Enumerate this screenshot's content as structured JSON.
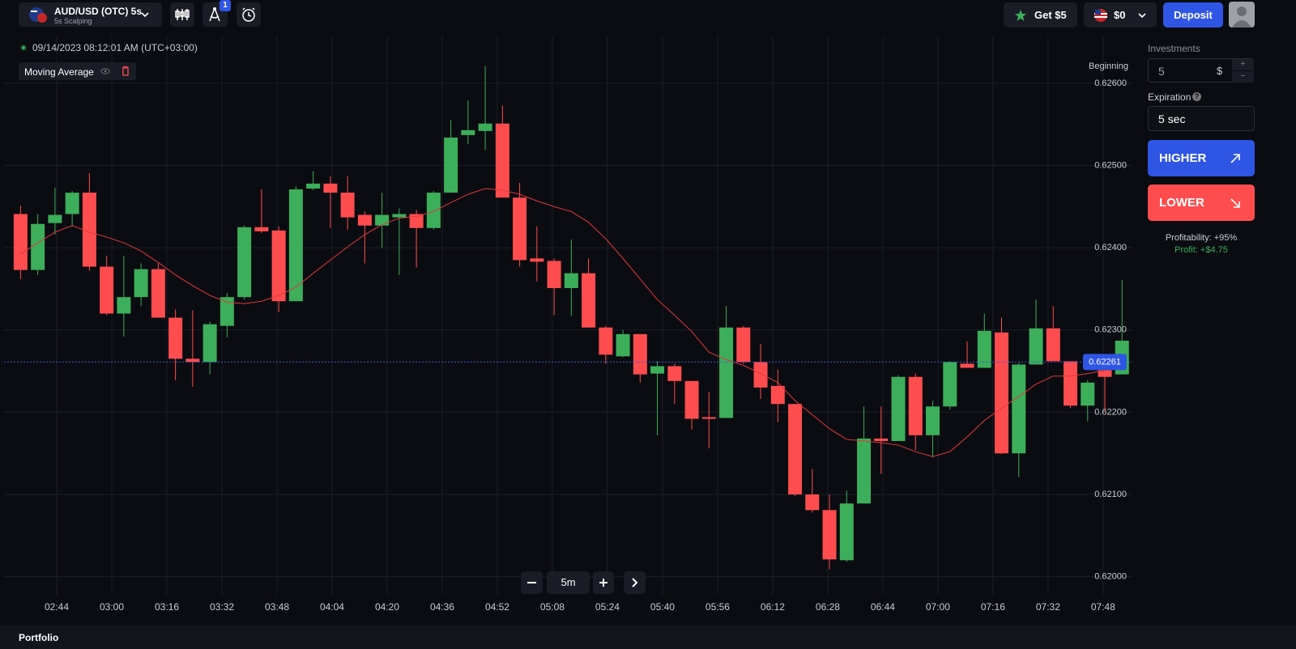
{
  "header": {
    "pair": "AUD/USD (OTC) 5s",
    "mode": "5s Scalping",
    "badge": "1",
    "bonus": "Get $5",
    "balance": "$0",
    "deposit": "Deposit"
  },
  "chart_data": {
    "type": "candlestick",
    "date": "09/14/2023",
    "time": "08:12:01 AM",
    "timezone": "(UTC+03:00)",
    "note": "Beginning",
    "timeframe": "5m",
    "current_price": 0.62261,
    "up_color": "#3dae5a",
    "down_color": "#ff4d4f",
    "grid": true,
    "xlim": [
      148.7,
      476.5
    ],
    "ylim": [
      0.61978,
      0.62657
    ],
    "xticks": [
      {
        "value": 164,
        "label": "02:44"
      },
      {
        "value": 180,
        "label": "03:00"
      },
      {
        "value": 196,
        "label": "03:16"
      },
      {
        "value": 212,
        "label": "03:32"
      },
      {
        "value": 228,
        "label": "03:48"
      },
      {
        "value": 244,
        "label": "04:04"
      },
      {
        "value": 260,
        "label": "04:20"
      },
      {
        "value": 276,
        "label": "04:36"
      },
      {
        "value": 292,
        "label": "04:52"
      },
      {
        "value": 308,
        "label": "05:08"
      },
      {
        "value": 324,
        "label": "05:24"
      },
      {
        "value": 340,
        "label": "05:40"
      },
      {
        "value": 356,
        "label": "05:56"
      },
      {
        "value": 372,
        "label": "06:12"
      },
      {
        "value": 388,
        "label": "06:28"
      },
      {
        "value": 404,
        "label": "06:44"
      },
      {
        "value": 420,
        "label": "07:00"
      },
      {
        "value": 436,
        "label": "07:16"
      },
      {
        "value": 452,
        "label": "07:32"
      },
      {
        "value": 468,
        "label": "07:48"
      }
    ],
    "yticks": [
      {
        "value": 0.626,
        "label": "0.62600"
      },
      {
        "value": 0.625,
        "label": "0.62500"
      },
      {
        "value": 0.624,
        "label": "0.62400"
      },
      {
        "value": 0.623,
        "label": "0.62300"
      },
      {
        "value": 0.622,
        "label": "0.62200"
      },
      {
        "value": 0.621,
        "label": "0.62100"
      },
      {
        "value": 0.62,
        "label": "0.62000"
      }
    ],
    "x": [
      151,
      156,
      161,
      166,
      171,
      176,
      181,
      186,
      191,
      196,
      201,
      206,
      211,
      216,
      221,
      226,
      231,
      236,
      241,
      246,
      251,
      256,
      261,
      266,
      271,
      276,
      281,
      286,
      291,
      296,
      301,
      306,
      311,
      316,
      321,
      326,
      331,
      336,
      341,
      346,
      351,
      356,
      361,
      366,
      371,
      376,
      381,
      386,
      391,
      396,
      401,
      406,
      411,
      416,
      421,
      426,
      431,
      436,
      441,
      446,
      451,
      456,
      461,
      466,
      471
    ],
    "open": [
      0.62441,
      0.62373,
      0.6243,
      0.62441,
      0.62467,
      0.62377,
      0.6232,
      0.6234,
      0.62374,
      0.62315,
      0.62265,
      0.62261,
      0.62305,
      0.6234,
      0.62425,
      0.62421,
      0.62335,
      0.62472,
      0.62478,
      0.62467,
      0.6244,
      0.62427,
      0.62437,
      0.62441,
      0.62424,
      0.62467,
      0.62537,
      0.62542,
      0.62551,
      0.62461,
      0.62387,
      0.62384,
      0.62351,
      0.62369,
      0.62303,
      0.62268,
      0.62295,
      0.62247,
      0.62256,
      0.62238,
      0.62194,
      0.62193,
      0.62303,
      0.62261,
      0.62232,
      0.6221,
      0.621,
      0.62081,
      0.6202,
      0.62089,
      0.62168,
      0.62165,
      0.62243,
      0.62172,
      0.62207,
      0.62259,
      0.62254,
      0.62297,
      0.6215,
      0.62258,
      0.62302,
      0.62262,
      0.62208,
      0.62251,
      0.62246
    ],
    "high": [
      0.62451,
      0.62441,
      0.62473,
      0.62469,
      0.62491,
      0.6239,
      0.6239,
      0.62381,
      0.62381,
      0.62325,
      0.62324,
      0.6231,
      0.62345,
      0.62427,
      0.62471,
      0.62426,
      0.62475,
      0.62493,
      0.62487,
      0.62487,
      0.62444,
      0.62467,
      0.62448,
      0.62446,
      0.62469,
      0.62555,
      0.62579,
      0.62621,
      0.62573,
      0.62479,
      0.62426,
      0.62387,
      0.6241,
      0.62387,
      0.62305,
      0.623,
      0.62295,
      0.62262,
      0.62259,
      0.62238,
      0.62225,
      0.62329,
      0.62305,
      0.62283,
      0.62252,
      0.6221,
      0.62131,
      0.621,
      0.62105,
      0.62207,
      0.62207,
      0.62245,
      0.62247,
      0.62214,
      0.62262,
      0.62286,
      0.6232,
      0.62315,
      0.6226,
      0.62337,
      0.62329,
      0.62262,
      0.62239,
      0.62259,
      0.62361
    ],
    "low": [
      0.62362,
      0.62367,
      0.62416,
      0.62426,
      0.62372,
      0.62318,
      0.62292,
      0.62329,
      0.62315,
      0.62239,
      0.62231,
      0.62246,
      0.62291,
      0.62337,
      0.62418,
      0.62322,
      0.62335,
      0.6247,
      0.62424,
      0.62422,
      0.62381,
      0.624,
      0.62367,
      0.62376,
      0.62422,
      0.62467,
      0.62526,
      0.62519,
      0.62461,
      0.62377,
      0.62359,
      0.62318,
      0.62317,
      0.62303,
      0.62259,
      0.62267,
      0.62236,
      0.62172,
      0.6221,
      0.62179,
      0.62156,
      0.62193,
      0.62259,
      0.62216,
      0.62188,
      0.62098,
      0.62078,
      0.62009,
      0.62018,
      0.62089,
      0.62125,
      0.62165,
      0.62154,
      0.62145,
      0.62203,
      0.62254,
      0.62254,
      0.62149,
      0.62121,
      0.62258,
      0.62262,
      0.62205,
      0.62189,
      0.62202,
      0.62246
    ],
    "close": [
      0.62373,
      0.62429,
      0.6244,
      0.62467,
      0.62377,
      0.6232,
      0.6234,
      0.62374,
      0.62315,
      0.62265,
      0.62261,
      0.62307,
      0.6234,
      0.62425,
      0.6242,
      0.62335,
      0.62471,
      0.62478,
      0.62467,
      0.62437,
      0.62427,
      0.6244,
      0.62441,
      0.62424,
      0.62467,
      0.62534,
      0.62543,
      0.62551,
      0.62461,
      0.62385,
      0.62383,
      0.62351,
      0.62369,
      0.62303,
      0.6227,
      0.62295,
      0.62246,
      0.62256,
      0.62238,
      0.62192,
      0.62192,
      0.62303,
      0.62261,
      0.6223,
      0.6221,
      0.621,
      0.62081,
      0.62021,
      0.62089,
      0.62168,
      0.62165,
      0.62243,
      0.62172,
      0.62207,
      0.62261,
      0.62254,
      0.62299,
      0.6215,
      0.62258,
      0.62302,
      0.62262,
      0.62208,
      0.62236,
      0.62243,
      0.62287
    ],
    "series": [
      {
        "name": "Moving Average",
        "color": "#e0393b",
        "values": [
          0.62392,
          0.62406,
          0.62419,
          0.62427,
          0.62419,
          0.62413,
          0.62406,
          0.62396,
          0.62382,
          0.62367,
          0.62354,
          0.62342,
          0.62334,
          0.62332,
          0.62335,
          0.62342,
          0.62352,
          0.62369,
          0.62385,
          0.62401,
          0.62416,
          0.62428,
          0.62436,
          0.62438,
          0.62444,
          0.62455,
          0.62465,
          0.62472,
          0.6247,
          0.62465,
          0.62457,
          0.6245,
          0.62444,
          0.62431,
          0.62411,
          0.62387,
          0.62362,
          0.62337,
          0.62318,
          0.62298,
          0.62273,
          0.62264,
          0.62257,
          0.62247,
          0.62236,
          0.62214,
          0.62197,
          0.6218,
          0.62167,
          0.62165,
          0.62163,
          0.6216,
          0.62152,
          0.62146,
          0.62152,
          0.6217,
          0.6219,
          0.62205,
          0.62219,
          0.62234,
          0.62244,
          0.62244,
          0.62247,
          0.62251,
          0.62253
        ]
      }
    ]
  },
  "trade_panel": {
    "investments_label": "Investments",
    "amount": "5",
    "currency": "$",
    "plus": "+",
    "minus": "−",
    "expiration_label": "Expiration",
    "help": "?",
    "expiration": "5 sec",
    "higher": "HIGHER",
    "lower": "LOWER",
    "profitability": "Profitability: +95%",
    "profit": "Profit: +$4.75"
  },
  "footer": {
    "portfolio": "Portfolio"
  }
}
